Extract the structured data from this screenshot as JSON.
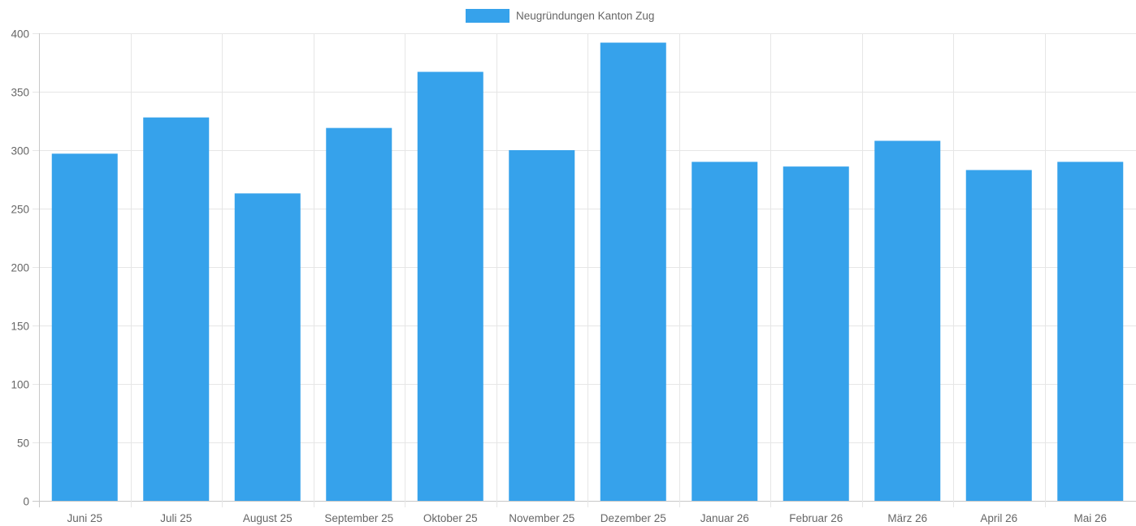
{
  "chart_data": {
    "type": "bar",
    "categories": [
      "Juni 25",
      "Juli 25",
      "August 25",
      "September 25",
      "Oktober 25",
      "November 25",
      "Dezember 25",
      "Januar 26",
      "Februar 26",
      "März 26",
      "April 26",
      "Mai 26"
    ],
    "series": [
      {
        "name": "Neugründungen Kanton Zug",
        "values": [
          297,
          328,
          263,
          319,
          367,
          300,
          392,
          290,
          286,
          308,
          283,
          290
        ],
        "color": "#36a2eb"
      }
    ],
    "ylim": [
      0,
      400
    ],
    "yticks": [
      0,
      50,
      100,
      150,
      200,
      250,
      300,
      350,
      400
    ],
    "grid": true,
    "legend_position": "top-center"
  },
  "colors": {
    "grid": "#e6e6e6",
    "axis": "#c8c8c8",
    "text": "#666666"
  }
}
